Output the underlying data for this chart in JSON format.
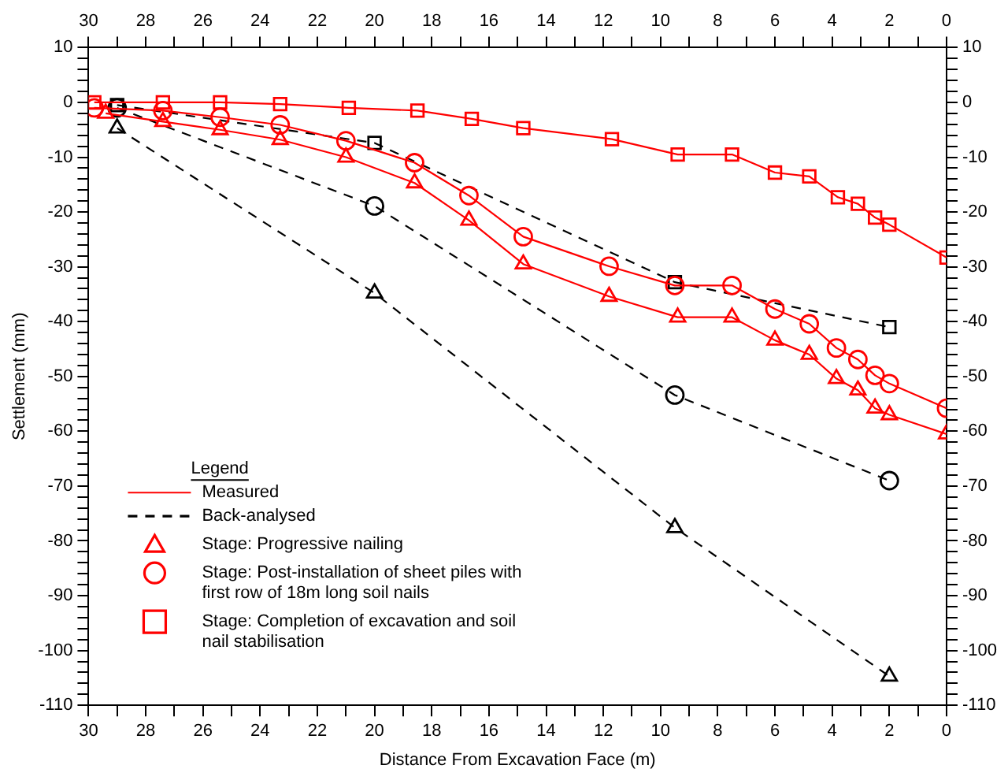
{
  "chart_data": {
    "type": "line",
    "xlabel": "Distance From Excavation Face (m)",
    "ylabel": "Settlement (mm)",
    "legend_title": "Legend",
    "annotations": [
      "Measured",
      "Back-analysed"
    ],
    "xlim": [
      30,
      0
    ],
    "xticks": [
      30,
      {
        "value": 29,
        "label": null
      },
      28,
      {
        "value": 27,
        "label": null
      },
      26,
      {
        "value": 25,
        "label": null
      },
      24,
      {
        "value": 23,
        "label": null
      },
      22,
      {
        "value": 21,
        "label": null
      },
      20,
      {
        "value": 19,
        "label": null
      },
      18,
      {
        "value": 17,
        "label": null
      },
      16,
      {
        "value": 15,
        "label": null
      },
      14,
      {
        "value": 13,
        "label": null
      },
      12,
      {
        "value": 11,
        "label": null
      },
      10,
      {
        "value": 9,
        "label": null
      },
      8,
      {
        "value": 7,
        "label": null
      },
      6,
      {
        "value": 5,
        "label": null
      },
      4,
      {
        "value": 3,
        "label": null
      },
      2,
      {
        "value": 1,
        "label": null
      },
      0
    ],
    "x2lim": [
      30,
      0
    ],
    "x2ticks": [
      30,
      {
        "value": 29,
        "label": null
      },
      28,
      {
        "value": 27,
        "label": null
      },
      26,
      {
        "value": 25,
        "label": null
      },
      24,
      {
        "value": 23,
        "label": null
      },
      22,
      {
        "value": 21,
        "label": null
      },
      20,
      {
        "value": 19,
        "label": null
      },
      18,
      {
        "value": 17,
        "label": null
      },
      16,
      {
        "value": 15,
        "label": null
      },
      14,
      {
        "value": 13,
        "label": null
      },
      12,
      {
        "value": 11,
        "label": null
      },
      10,
      {
        "value": 9,
        "label": null
      },
      8,
      {
        "value": 7,
        "label": null
      },
      6,
      {
        "value": 5,
        "label": null
      },
      4,
      {
        "value": 3,
        "label": null
      },
      2,
      {
        "value": 1,
        "label": null
      },
      0
    ],
    "ylim": [
      -110,
      10
    ],
    "yticks": [
      -110,
      {
        "value": -108,
        "label": null
      },
      {
        "value": -106,
        "label": null
      },
      {
        "value": -104,
        "label": null
      },
      {
        "value": -102,
        "label": null
      },
      -100,
      {
        "value": -98,
        "label": null
      },
      {
        "value": -96,
        "label": null
      },
      {
        "value": -94,
        "label": null
      },
      {
        "value": -92,
        "label": null
      },
      -90,
      {
        "value": -88,
        "label": null
      },
      {
        "value": -86,
        "label": null
      },
      {
        "value": -84,
        "label": null
      },
      {
        "value": -82,
        "label": null
      },
      -80,
      {
        "value": -78,
        "label": null
      },
      {
        "value": -76,
        "label": null
      },
      {
        "value": -74,
        "label": null
      },
      {
        "value": -72,
        "label": null
      },
      -70,
      {
        "value": -68,
        "label": null
      },
      {
        "value": -66,
        "label": null
      },
      {
        "value": -64,
        "label": null
      },
      {
        "value": -62,
        "label": null
      },
      -60,
      {
        "value": -58,
        "label": null
      },
      {
        "value": -56,
        "label": null
      },
      {
        "value": -54,
        "label": null
      },
      {
        "value": -52,
        "label": null
      },
      -50,
      {
        "value": -48,
        "label": null
      },
      {
        "value": -46,
        "label": null
      },
      {
        "value": -44,
        "label": null
      },
      {
        "value": -42,
        "label": null
      },
      -40,
      {
        "value": -38,
        "label": null
      },
      {
        "value": -36,
        "label": null
      },
      {
        "value": -34,
        "label": null
      },
      {
        "value": -32,
        "label": null
      },
      -30,
      {
        "value": -28,
        "label": null
      },
      {
        "value": -26,
        "label": null
      },
      {
        "value": -24,
        "label": null
      },
      {
        "value": -22,
        "label": null
      },
      -20,
      {
        "value": -18,
        "label": null
      },
      {
        "value": -16,
        "label": null
      },
      {
        "value": -14,
        "label": null
      },
      {
        "value": -12,
        "label": null
      },
      -10,
      {
        "value": -8,
        "label": null
      },
      {
        "value": -6,
        "label": null
      },
      {
        "value": -4,
        "label": null
      },
      {
        "value": -2,
        "label": null
      },
      0,
      {
        "value": 2,
        "label": null
      },
      {
        "value": 4,
        "label": null
      },
      {
        "value": 6,
        "label": null
      },
      {
        "value": 8,
        "label": null
      },
      10
    ],
    "y2lim": [
      -110,
      10
    ],
    "y2ticks": [
      -110,
      {
        "value": -108,
        "label": null
      },
      {
        "value": -106,
        "label": null
      },
      {
        "value": -104,
        "label": null
      },
      {
        "value": -102,
        "label": null
      },
      -100,
      {
        "value": -98,
        "label": null
      },
      {
        "value": -96,
        "label": null
      },
      {
        "value": -94,
        "label": null
      },
      {
        "value": -92,
        "label": null
      },
      -90,
      {
        "value": -88,
        "label": null
      },
      {
        "value": -86,
        "label": null
      },
      {
        "value": -84,
        "label": null
      },
      {
        "value": -82,
        "label": null
      },
      -80,
      {
        "value": -78,
        "label": null
      },
      {
        "value": -76,
        "label": null
      },
      {
        "value": -74,
        "label": null
      },
      {
        "value": -72,
        "label": null
      },
      -70,
      {
        "value": -68,
        "label": null
      },
      {
        "value": -66,
        "label": null
      },
      {
        "value": -64,
        "label": null
      },
      {
        "value": -62,
        "label": null
      },
      -60,
      {
        "value": -58,
        "label": null
      },
      {
        "value": -56,
        "label": null
      },
      {
        "value": -54,
        "label": null
      },
      {
        "value": -52,
        "label": null
      },
      -50,
      {
        "value": -48,
        "label": null
      },
      {
        "value": -46,
        "label": null
      },
      {
        "value": -44,
        "label": null
      },
      {
        "value": -42,
        "label": null
      },
      -40,
      {
        "value": -38,
        "label": null
      },
      {
        "value": -36,
        "label": null
      },
      {
        "value": -34,
        "label": null
      },
      {
        "value": -32,
        "label": null
      },
      -30,
      {
        "value": -28,
        "label": null
      },
      {
        "value": -26,
        "label": null
      },
      {
        "value": -24,
        "label": null
      },
      {
        "value": -22,
        "label": null
      },
      -20,
      {
        "value": -18,
        "label": null
      },
      {
        "value": -16,
        "label": null
      },
      {
        "value": -14,
        "label": null
      },
      {
        "value": -12,
        "label": null
      },
      -10,
      {
        "value": -8,
        "label": null
      },
      {
        "value": -6,
        "label": null
      },
      {
        "value": -4,
        "label": null
      },
      {
        "value": -2,
        "label": null
      },
      0,
      {
        "value": 2,
        "label": null
      },
      {
        "value": 4,
        "label": null
      },
      {
        "value": 6,
        "label": null
      },
      {
        "value": 8,
        "label": null
      },
      10
    ],
    "grid": false,
    "legend": "bottom left",
    "series": [
      {
        "name": "Stage: Progressive nailing",
        "color": "#ff0000",
        "marker": "triangle",
        "line_style": "solid",
        "x": [
          29.4,
          27.4,
          25.4,
          23.3,
          21.0,
          18.6,
          16.7,
          14.8,
          11.8,
          9.4,
          7.5,
          6.0,
          4.8,
          3.85,
          3.1,
          2.5,
          2.0,
          0
        ],
        "values": [
          -2,
          -3.5,
          -5,
          -6.8,
          -10,
          -14.7,
          -21.5,
          -29.5,
          -35.4,
          -39.2,
          -39.2,
          -43.4,
          -46,
          -50.4,
          -52.5,
          -55.8,
          -57,
          -60.5
        ]
      },
      {
        "name": "Stage: Post-installation of sheet piles with first row of 18m long soil nails",
        "color": "#ff0000",
        "marker": "circle",
        "line_style": "solid",
        "x": [
          29.8,
          27.4,
          25.4,
          23.3,
          21.0,
          18.6,
          16.7,
          14.8,
          11.8,
          9.5,
          7.5,
          6.0,
          4.8,
          3.85,
          3.1,
          2.5,
          2.0,
          0
        ],
        "values": [
          -1,
          -1.5,
          -2.7,
          -4.1,
          -7,
          -11,
          -17,
          -24.5,
          -29.9,
          -33.4,
          -33.4,
          -37.7,
          -40.4,
          -44.8,
          -46.9,
          -49.8,
          -51.3,
          -55.8
        ]
      },
      {
        "name": "Stage: Completion of excavation and soil nail stabilisation",
        "color": "#ff0000",
        "marker": "square",
        "line_style": "solid",
        "x": [
          29.8,
          27.4,
          25.4,
          23.3,
          20.9,
          18.5,
          16.6,
          14.8,
          11.7,
          9.4,
          7.5,
          6.0,
          4.8,
          3.8,
          3.1,
          2.5,
          2.0,
          0
        ],
        "values": [
          0,
          0,
          0,
          -0.3,
          -1,
          -1.5,
          -3,
          -4.7,
          -6.7,
          -9.5,
          -9.5,
          -12.8,
          -13.5,
          -17.3,
          -18.5,
          -21,
          -22.3,
          -28.3
        ]
      },
      {
        "color": "#000000",
        "marker": "triangle",
        "line_style": "dashed",
        "x": [
          29,
          20,
          9.5,
          2
        ],
        "values": [
          -4.7,
          -34.8,
          -77.6,
          -104.7
        ]
      },
      {
        "color": "#000000",
        "marker": "circle",
        "line_style": "dashed",
        "x": [
          29,
          20,
          9.5,
          2
        ],
        "values": [
          -1,
          -18.9,
          -53.4,
          -69
        ]
      },
      {
        "color": "#000000",
        "marker": "square",
        "line_style": "dashed",
        "x": [
          29,
          20,
          9.5,
          2
        ],
        "values": [
          -0.5,
          -7.4,
          -32.8,
          -41
        ]
      }
    ]
  }
}
